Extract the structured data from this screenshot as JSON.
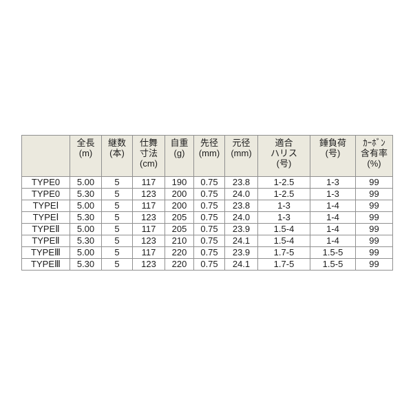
{
  "chart_data": {
    "type": "table",
    "columns": [
      "",
      "全長\n(m)",
      "継数\n(本)",
      "仕舞\n寸法\n(cm)",
      "自重\n(g)",
      "先径\n(mm)",
      "元径\n(mm)",
      "適合\nハリス\n(号)",
      "錘負荷\n(号)",
      "ｶｰﾎﾞﾝ\n含有率\n(%)"
    ],
    "rows": [
      [
        "TYPE0",
        "5.00",
        "5",
        "117",
        "190",
        "0.75",
        "23.8",
        "1-2.5",
        "1-3",
        "99"
      ],
      [
        "TYPE0",
        "5.30",
        "5",
        "123",
        "200",
        "0.75",
        "24.0",
        "1-2.5",
        "1-3",
        "99"
      ],
      [
        "TYPEⅠ",
        "5.00",
        "5",
        "117",
        "200",
        "0.75",
        "23.8",
        "1-3",
        "1-4",
        "99"
      ],
      [
        "TYPEⅠ",
        "5.30",
        "5",
        "123",
        "205",
        "0.75",
        "24.0",
        "1-3",
        "1-4",
        "99"
      ],
      [
        "TYPEⅡ",
        "5.00",
        "5",
        "117",
        "205",
        "0.75",
        "23.9",
        "1.5-4",
        "1-4",
        "99"
      ],
      [
        "TYPEⅡ",
        "5.30",
        "5",
        "123",
        "210",
        "0.75",
        "24.1",
        "1.5-4",
        "1-4",
        "99"
      ],
      [
        "TYPEⅢ",
        "5.00",
        "5",
        "117",
        "220",
        "0.75",
        "23.9",
        "1.7-5",
        "1.5-5",
        "99"
      ],
      [
        "TYPEⅢ",
        "5.30",
        "5",
        "123",
        "220",
        "0.75",
        "24.1",
        "1.7-5",
        "1.5-5",
        "99"
      ]
    ]
  },
  "colors": {
    "page_bg": "#ffffff",
    "header_bg": "#ebe9de",
    "border": "#8f8f8f",
    "text": "#1c1c1c",
    "row_bg": "#ffffff"
  }
}
